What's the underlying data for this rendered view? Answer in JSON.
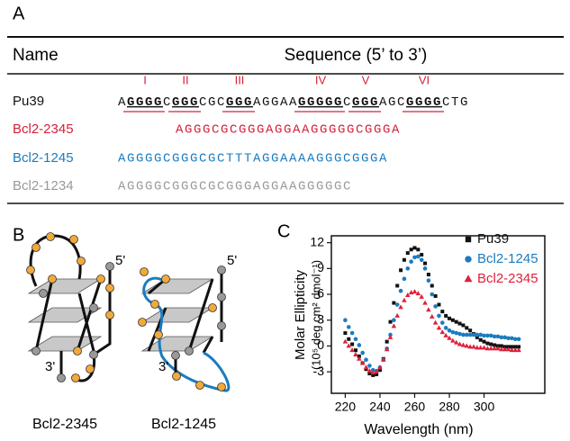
{
  "panel_a": {
    "label": "A",
    "headers": [
      "Name",
      "Sequence (5’ to 3’)"
    ],
    "tract_labels": [
      "I",
      "II",
      "III",
      "IV",
      "V",
      "VI"
    ],
    "rows": [
      {
        "name": "Pu39",
        "color": "#111111",
        "segments": [
          "A",
          "GGGG",
          "C",
          "GGG",
          "CGC",
          "GGG",
          "AGGAA",
          "GGGGG",
          "C",
          "GGG",
          "AGC",
          "GGGG",
          "CTG"
        ]
      },
      {
        "name": "Bcl2-2345",
        "color": "#d3213a",
        "sequence": "AGGGCGCGGGAGGAAGGGGGCGGGA"
      },
      {
        "name": "Bcl2-1245",
        "color": "#1b7bbf",
        "sequence": "AGGGGCGGGCGCTTTAGGAAAAGGGCGGGA"
      },
      {
        "name": "Bcl2-1234",
        "color": "#999999",
        "sequence": "AGGGGCGGGCGCGGGAGGAAGGGGGC"
      }
    ]
  },
  "panel_b": {
    "label": "B",
    "structures": [
      {
        "name": "Bcl2-2345",
        "five": "5'",
        "three": "3'"
      },
      {
        "name": "Bcl2-1245",
        "five": "5'",
        "three": "3'"
      }
    ]
  },
  "chart_data": {
    "type": "scatter",
    "panel_label": "C",
    "xlabel": "Wavelength (nm)",
    "ylabel": [
      "Molar Ellipticity",
      "(10⁵ deg cm² dmol⁻¹)"
    ],
    "xlim": [
      212,
      335
    ],
    "ylim": [
      -5.5,
      12.8
    ],
    "xticks": [
      220,
      240,
      260,
      280,
      300
    ],
    "yticks": [
      -3,
      0,
      3,
      6,
      9,
      12
    ],
    "x": [
      220,
      222,
      224,
      226,
      228,
      230,
      232,
      234,
      236,
      238,
      240,
      242,
      244,
      246,
      248,
      250,
      252,
      254,
      256,
      258,
      260,
      262,
      264,
      266,
      268,
      270,
      272,
      274,
      276,
      278,
      280,
      282,
      284,
      286,
      288,
      290,
      292,
      294,
      296,
      298,
      300,
      302,
      304,
      306,
      308,
      310,
      312,
      314,
      316,
      318,
      320
    ],
    "legend": "upper right",
    "series": [
      {
        "name": "Pu39",
        "color": "#111111",
        "marker": "square",
        "values": [
          1.5,
          0.8,
          0.2,
          -0.5,
          -1.2,
          -2.0,
          -2.7,
          -3.2,
          -3.4,
          -3.3,
          -2.8,
          -1.5,
          0.5,
          2.8,
          5.0,
          7.0,
          8.8,
          10.0,
          10.8,
          11.2,
          11.4,
          11.2,
          10.6,
          9.6,
          8.3,
          7.0,
          5.8,
          4.8,
          4.0,
          3.5,
          3.2,
          3.0,
          2.8,
          2.6,
          2.4,
          2.1,
          1.8,
          1.4,
          1.0,
          0.7,
          0.5,
          0.3,
          0.2,
          0.1,
          0.0,
          0.0,
          -0.1,
          -0.1,
          -0.1,
          -0.1,
          -0.1
        ]
      },
      {
        "name": "Bcl2-1245",
        "color": "#1b7bbf",
        "marker": "circle",
        "values": [
          3.0,
          2.2,
          1.5,
          0.8,
          0.1,
          -0.8,
          -1.6,
          -2.3,
          -2.8,
          -2.9,
          -2.5,
          -1.6,
          -0.3,
          1.3,
          3.0,
          4.8,
          6.4,
          7.8,
          9.0,
          9.8,
          10.3,
          10.4,
          10.0,
          9.0,
          7.6,
          6.0,
          4.6,
          3.5,
          2.7,
          2.1,
          1.8,
          1.6,
          1.5,
          1.4,
          1.3,
          1.3,
          1.3,
          1.3,
          1.3,
          1.3,
          1.2,
          1.2,
          1.2,
          1.1,
          1.1,
          1.0,
          1.0,
          0.9,
          0.9,
          0.8,
          0.8
        ]
      },
      {
        "name": "Bcl2-2345",
        "color": "#e0203a",
        "marker": "triangle",
        "values": [
          0.5,
          0,
          -0.5,
          -1.0,
          -1.5,
          -2.0,
          -2.5,
          -2.9,
          -3.1,
          -3.0,
          -2.5,
          -1.6,
          -0.4,
          1.0,
          2.3,
          3.5,
          4.5,
          5.3,
          5.9,
          6.2,
          6.3,
          6.1,
          5.7,
          5.0,
          4.2,
          3.4,
          2.7,
          2.1,
          1.6,
          1.2,
          0.9,
          0.6,
          0.4,
          0.2,
          0.1,
          0.0,
          -0.1,
          -0.1,
          -0.2,
          -0.2,
          -0.2,
          -0.3,
          -0.3,
          -0.3,
          -0.3,
          -0.4,
          -0.4,
          -0.4,
          -0.5,
          -0.5,
          -0.5
        ]
      }
    ]
  }
}
